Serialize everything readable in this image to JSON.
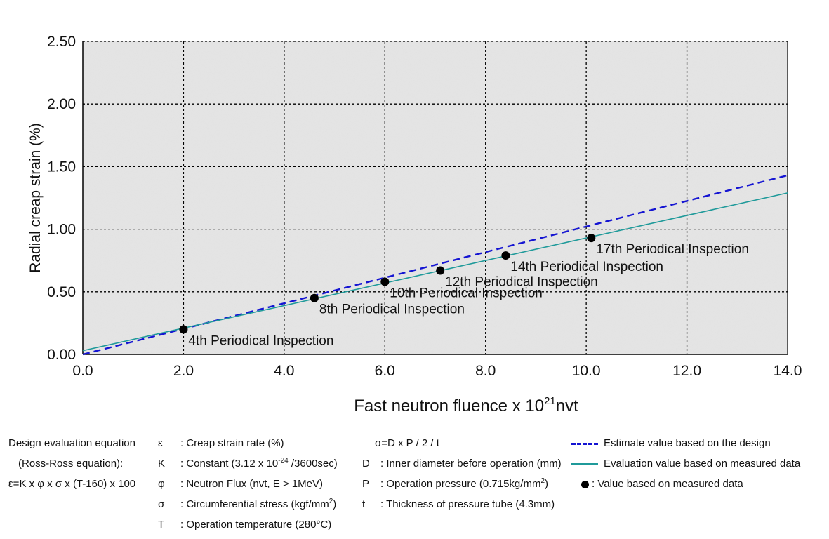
{
  "chart_data": {
    "type": "line",
    "title": "",
    "xlabel": "Fast neutron fluence x 10",
    "xlabel_sup": "21",
    "xlabel_suffix": "nvt",
    "ylabel": "Radial creap strain (%)",
    "xlim": [
      0,
      14
    ],
    "ylim": [
      0,
      2.5
    ],
    "xticks": [
      "0.0",
      "2.0",
      "4.0",
      "6.0",
      "8.0",
      "10.0",
      "12.0",
      "14.0"
    ],
    "yticks": [
      "0.00",
      "0.50",
      "1.00",
      "1.50",
      "2.00",
      "2.50"
    ],
    "grid": true,
    "series": [
      {
        "name": "Estimate value based on the design",
        "style": "dashed",
        "color": "#1414d2",
        "x": [
          0,
          14
        ],
        "y": [
          0,
          1.43
        ]
      },
      {
        "name": "Evaluation value based on measured data",
        "style": "solid",
        "color": "#1f9a9a",
        "x": [
          0,
          14
        ],
        "y": [
          0.03,
          1.29
        ]
      },
      {
        "name": "Value based on measured data",
        "style": "marker",
        "color": "#000000",
        "points": [
          {
            "x": 2.0,
            "y": 0.2,
            "label": "4th Periodical Inspection"
          },
          {
            "x": 4.6,
            "y": 0.45,
            "label": "8th Periodical Inspection"
          },
          {
            "x": 6.0,
            "y": 0.58,
            "label": "10th Periodical Inspection"
          },
          {
            "x": 7.1,
            "y": 0.67,
            "label": "12th Periodical Inspection"
          },
          {
            "x": 8.4,
            "y": 0.79,
            "label": "14th Periodical Inspection"
          },
          {
            "x": 10.1,
            "y": 0.93,
            "label": "17th Periodical Inspection"
          }
        ]
      }
    ]
  },
  "notes": {
    "equation_title": "Design evaluation equation",
    "equation_name": "(Ross-Ross equation):",
    "equation": "ε=K x φ x σ x (T-160) x 100",
    "vars": [
      {
        "sym": "ε",
        "text": ": Creap strain rate (%)"
      },
      {
        "sym": "K",
        "text_pre": ": Constant (3.12 x 10",
        "sup": "-24",
        "text_post": " /3600sec)"
      },
      {
        "sym": "φ",
        "text": ": Neutron Flux (nvt, E > 1MeV)"
      },
      {
        "sym": "σ",
        "text_pre": ": Circumferential stress (kgf/mm",
        "sup": "2",
        "text_post": ")"
      },
      {
        "sym": "T",
        "text": ": Operation temperature (280°C)"
      }
    ],
    "sigma_eq": "σ=D x P / 2 / t",
    "vars2": [
      {
        "sym": "D",
        "text": ": Inner diameter before operation (mm)"
      },
      {
        "sym": "P",
        "text_pre": ": Operation pressure (0.715kg/mm",
        "sup": "2",
        "text_post": ")"
      },
      {
        "sym": "t",
        "text": ": Thickness of pressure tube (4.3mm)"
      }
    ],
    "legend": [
      {
        "kind": "dashed",
        "color": "#1414d2",
        "text": "Estimate value based on the design"
      },
      {
        "kind": "solid",
        "color": "#1f9a9a",
        "text": "Evaluation value based on measured data"
      },
      {
        "kind": "dot",
        "color": "#000000",
        "text": ": Value based on measured data"
      }
    ]
  }
}
